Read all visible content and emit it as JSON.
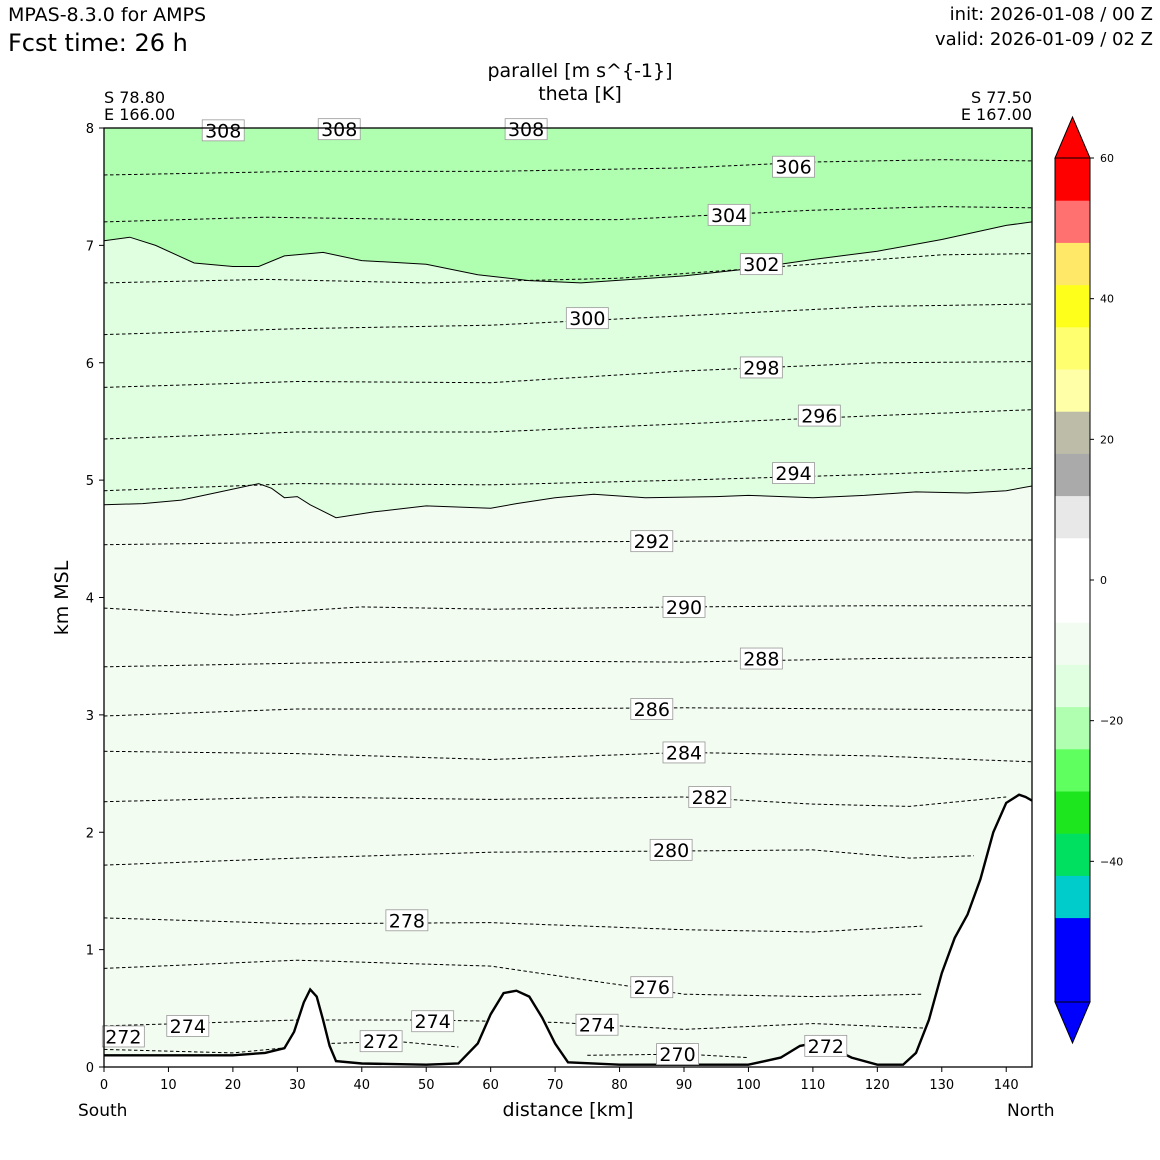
{
  "header": {
    "model": "MPAS-8.3.0 for AMPS",
    "fcst_label": "Fcst time:   26 h",
    "init": "init: 2026-01-08 / 00 Z",
    "valid": "valid: 2026-01-09 / 02 Z"
  },
  "endpoints": {
    "left_lat": "S 78.80",
    "left_lon": "E 166.00",
    "right_lat": "S 77.50",
    "right_lon": "E 167.00",
    "left_dir": "South",
    "right_dir": "North"
  },
  "chart_data": {
    "type": "contour",
    "title": "parallel [m s^{-1}]",
    "subtitle": "theta [K]",
    "xlabel": "distance [km]",
    "ylabel": "km MSL",
    "xlim": [
      0,
      144
    ],
    "ylim": [
      0,
      8
    ],
    "x_ticks": [
      0,
      10,
      20,
      30,
      40,
      50,
      60,
      70,
      80,
      90,
      100,
      110,
      120,
      130,
      140
    ],
    "y_ticks": [
      0,
      1,
      2,
      3,
      4,
      5,
      6,
      7,
      8
    ],
    "fill_regions": [
      {
        "range": "-15 to -10",
        "color": "#b0ffb0",
        "top_km": 8,
        "boundary_km": [
          [
            0,
            7.04
          ],
          [
            4,
            7.07
          ],
          [
            8,
            7.0
          ],
          [
            14,
            6.85
          ],
          [
            20,
            6.82
          ],
          [
            24,
            6.82
          ],
          [
            28,
            6.91
          ],
          [
            34,
            6.94
          ],
          [
            40,
            6.87
          ],
          [
            50,
            6.84
          ],
          [
            58,
            6.75
          ],
          [
            66,
            6.7
          ],
          [
            74,
            6.68
          ],
          [
            90,
            6.74
          ],
          [
            100,
            6.8
          ],
          [
            110,
            6.88
          ],
          [
            120,
            6.95
          ],
          [
            130,
            7.05
          ],
          [
            140,
            7.17
          ],
          [
            144,
            7.2
          ]
        ]
      },
      {
        "range": "-10 to -5",
        "color": "#e0ffe0",
        "boundary_km": [
          [
            0,
            4.79
          ],
          [
            6,
            4.8
          ],
          [
            12,
            4.83
          ],
          [
            18,
            4.9
          ],
          [
            24,
            4.97
          ],
          [
            26,
            4.93
          ],
          [
            28,
            4.85
          ],
          [
            30,
            4.86
          ],
          [
            32,
            4.79
          ],
          [
            36,
            4.68
          ],
          [
            42,
            4.73
          ],
          [
            50,
            4.78
          ],
          [
            60,
            4.76
          ],
          [
            64,
            4.8
          ],
          [
            70,
            4.85
          ],
          [
            76,
            4.88
          ],
          [
            84,
            4.85
          ],
          [
            95,
            4.86
          ],
          [
            100,
            4.87
          ],
          [
            110,
            4.85
          ],
          [
            118,
            4.87
          ],
          [
            126,
            4.9
          ],
          [
            134,
            4.89
          ],
          [
            140,
            4.91
          ],
          [
            144,
            4.95
          ]
        ]
      },
      {
        "range": "-5 to 0",
        "color": "#f2fcf0"
      }
    ],
    "theta_contours": [
      {
        "value": 306,
        "label": "306",
        "pts": [
          [
            0,
            7.6
          ],
          [
            30,
            7.63
          ],
          [
            60,
            7.63
          ],
          [
            90,
            7.66
          ],
          [
            110,
            7.71
          ],
          [
            130,
            7.73
          ],
          [
            144,
            7.72
          ]
        ],
        "label_km": [
          107,
          7.67
        ]
      },
      {
        "value": 304,
        "label": "304",
        "pts": [
          [
            0,
            7.2
          ],
          [
            25,
            7.24
          ],
          [
            50,
            7.22
          ],
          [
            80,
            7.22
          ],
          [
            110,
            7.3
          ],
          [
            130,
            7.33
          ],
          [
            144,
            7.32
          ]
        ],
        "label_km": [
          97,
          7.26
        ]
      },
      {
        "value": 302,
        "label": "302",
        "pts": [
          [
            0,
            6.68
          ],
          [
            25,
            6.71
          ],
          [
            50,
            6.68
          ],
          [
            80,
            6.72
          ],
          [
            110,
            6.84
          ],
          [
            130,
            6.92
          ],
          [
            144,
            6.93
          ]
        ],
        "label_km": [
          102,
          6.84
        ]
      },
      {
        "value": 300,
        "label": "300",
        "pts": [
          [
            0,
            6.24
          ],
          [
            30,
            6.29
          ],
          [
            60,
            6.32
          ],
          [
            90,
            6.4
          ],
          [
            120,
            6.48
          ],
          [
            144,
            6.5
          ]
        ],
        "label_km": [
          75,
          6.38
        ]
      },
      {
        "value": 298,
        "label": "298",
        "pts": [
          [
            0,
            5.79
          ],
          [
            30,
            5.84
          ],
          [
            60,
            5.83
          ],
          [
            90,
            5.93
          ],
          [
            120,
            6.0
          ],
          [
            144,
            6.01
          ]
        ],
        "label_km": [
          102,
          5.96
        ]
      },
      {
        "value": 296,
        "label": "296",
        "pts": [
          [
            0,
            5.35
          ],
          [
            30,
            5.41
          ],
          [
            60,
            5.41
          ],
          [
            90,
            5.48
          ],
          [
            120,
            5.55
          ],
          [
            144,
            5.6
          ]
        ],
        "label_km": [
          111,
          5.55
        ]
      },
      {
        "value": 294,
        "label": "294",
        "pts": [
          [
            0,
            4.91
          ],
          [
            30,
            4.97
          ],
          [
            60,
            4.96
          ],
          [
            90,
            5.0
          ],
          [
            120,
            5.05
          ],
          [
            144,
            5.1
          ]
        ],
        "label_km": [
          107,
          5.06
        ]
      },
      {
        "value": 292,
        "label": "292",
        "pts": [
          [
            0,
            4.45
          ],
          [
            30,
            4.47
          ],
          [
            60,
            4.47
          ],
          [
            90,
            4.48
          ],
          [
            120,
            4.49
          ],
          [
            144,
            4.49
          ]
        ],
        "label_km": [
          85,
          4.48
        ]
      },
      {
        "value": 290,
        "label": "290",
        "pts": [
          [
            0,
            3.91
          ],
          [
            20,
            3.85
          ],
          [
            40,
            3.92
          ],
          [
            60,
            3.9
          ],
          [
            90,
            3.92
          ],
          [
            120,
            3.93
          ],
          [
            144,
            3.93
          ]
        ],
        "label_km": [
          90,
          3.92
        ]
      },
      {
        "value": 288,
        "label": "288",
        "pts": [
          [
            0,
            3.41
          ],
          [
            30,
            3.44
          ],
          [
            60,
            3.46
          ],
          [
            90,
            3.45
          ],
          [
            120,
            3.48
          ],
          [
            144,
            3.49
          ]
        ],
        "label_km": [
          102,
          3.48
        ]
      },
      {
        "value": 286,
        "label": "286",
        "pts": [
          [
            0,
            2.99
          ],
          [
            30,
            3.05
          ],
          [
            60,
            3.05
          ],
          [
            90,
            3.06
          ],
          [
            120,
            3.05
          ],
          [
            144,
            3.04
          ]
        ],
        "label_km": [
          85,
          3.05
        ]
      },
      {
        "value": 284,
        "label": "284",
        "pts": [
          [
            0,
            2.69
          ],
          [
            30,
            2.67
          ],
          [
            60,
            2.62
          ],
          [
            90,
            2.68
          ],
          [
            120,
            2.65
          ],
          [
            144,
            2.6
          ]
        ],
        "label_km": [
          90,
          2.68
        ]
      },
      {
        "value": 282,
        "label": "282",
        "pts": [
          [
            0,
            2.26
          ],
          [
            30,
            2.3
          ],
          [
            60,
            2.28
          ],
          [
            90,
            2.3
          ],
          [
            110,
            2.24
          ],
          [
            125,
            2.22
          ],
          [
            140,
            2.3
          ]
        ],
        "label_km": [
          94,
          2.3
        ]
      },
      {
        "value": 280,
        "label": "280",
        "pts": [
          [
            0,
            1.72
          ],
          [
            30,
            1.78
          ],
          [
            60,
            1.83
          ],
          [
            90,
            1.84
          ],
          [
            110,
            1.85
          ],
          [
            125,
            1.78
          ],
          [
            135,
            1.8
          ]
        ],
        "label_km": [
          88,
          1.85
        ]
      },
      {
        "value": 278,
        "label": "278",
        "pts": [
          [
            0,
            1.27
          ],
          [
            30,
            1.22
          ],
          [
            60,
            1.23
          ],
          [
            90,
            1.17
          ],
          [
            110,
            1.15
          ],
          [
            127,
            1.2
          ]
        ],
        "label_km": [
          47,
          1.25
        ]
      },
      {
        "value": 276,
        "label": "276",
        "pts": [
          [
            0,
            0.84
          ],
          [
            30,
            0.91
          ],
          [
            60,
            0.86
          ],
          [
            90,
            0.62
          ],
          [
            110,
            0.6
          ],
          [
            127,
            0.62
          ]
        ],
        "label_km": [
          85,
          0.68
        ]
      },
      {
        "value": 274,
        "label": "274",
        "pts": [
          [
            0,
            0.35
          ],
          [
            30,
            0.4
          ],
          [
            50,
            0.4
          ],
          [
            70,
            0.38
          ],
          [
            90,
            0.32
          ],
          [
            110,
            0.37
          ],
          [
            128,
            0.33
          ]
        ],
        "label_km": [
          51,
          0.39
        ]
      },
      {
        "value": 272,
        "label": "272",
        "pts": [
          [
            0,
            0.15
          ],
          [
            20,
            0.12
          ],
          [
            35,
            0.2
          ],
          [
            45,
            0.22
          ],
          [
            55,
            0.17
          ]
        ],
        "label_km": [
          43,
          0.22
        ]
      },
      {
        "value": 270,
        "label": "270",
        "pts": [
          [
            75,
            0.1
          ],
          [
            90,
            0.11
          ],
          [
            100,
            0.08
          ]
        ],
        "label_km": [
          89,
          0.11
        ]
      }
    ],
    "extra_labels": [
      {
        "label": "308",
        "x_km": 18.5,
        "y_km": 7.98
      },
      {
        "label": "308",
        "x_km": 36.5,
        "y_km": 7.99
      },
      {
        "label": "308",
        "x_km": 65.5,
        "y_km": 7.99
      },
      {
        "label": "274",
        "x_km": 13,
        "y_km": 0.35
      },
      {
        "label": "272",
        "x_km": 3,
        "y_km": 0.26
      },
      {
        "label": "274",
        "x_km": 76.5,
        "y_km": 0.36
      },
      {
        "label": "272",
        "x_km": 112,
        "y_km": 0.18
      }
    ],
    "terrain_km": [
      [
        0,
        0.1
      ],
      [
        10,
        0.1
      ],
      [
        20,
        0.1
      ],
      [
        25,
        0.12
      ],
      [
        28,
        0.16
      ],
      [
        29.5,
        0.3
      ],
      [
        31,
        0.55
      ],
      [
        32,
        0.66
      ],
      [
        33,
        0.6
      ],
      [
        34,
        0.4
      ],
      [
        35,
        0.18
      ],
      [
        36,
        0.05
      ],
      [
        40,
        0.03
      ],
      [
        50,
        0.02
      ],
      [
        55,
        0.03
      ],
      [
        58,
        0.2
      ],
      [
        60,
        0.45
      ],
      [
        62,
        0.63
      ],
      [
        64,
        0.65
      ],
      [
        66,
        0.6
      ],
      [
        68,
        0.42
      ],
      [
        70,
        0.2
      ],
      [
        72,
        0.04
      ],
      [
        80,
        0.02
      ],
      [
        100,
        0.02
      ],
      [
        105,
        0.08
      ],
      [
        108,
        0.18
      ],
      [
        110,
        0.2
      ],
      [
        113,
        0.16
      ],
      [
        116,
        0.08
      ],
      [
        120,
        0.02
      ],
      [
        124,
        0.02
      ],
      [
        126,
        0.12
      ],
      [
        128,
        0.4
      ],
      [
        130,
        0.8
      ],
      [
        132,
        1.1
      ],
      [
        134,
        1.3
      ],
      [
        136,
        1.6
      ],
      [
        138,
        2.0
      ],
      [
        140,
        2.25
      ],
      [
        142,
        2.32
      ],
      [
        143,
        2.3
      ],
      [
        144,
        2.27
      ]
    ],
    "colorbar": {
      "ticks": [
        60,
        40,
        20,
        0,
        -20,
        -40
      ],
      "levels": [
        -55,
        -50,
        -45,
        -40,
        -35,
        -30,
        -25,
        -20,
        -15,
        -10,
        -5,
        0,
        5,
        10,
        15,
        20,
        25,
        30,
        35,
        40,
        45,
        50,
        55,
        60
      ],
      "colors": [
        "#0000ff",
        "#0000ff",
        "#00cccc",
        "#00e060",
        "#1ee61e",
        "#60ff60",
        "#b0ffb0",
        "#e0ffe0",
        "#f2fcf0",
        "#ffffff",
        "#ffffff",
        "#e8e8e8",
        "#aaaaaa",
        "#bcbca8",
        "#ffffa8",
        "#ffff70",
        "#ffff1c",
        "#ffe868",
        "#ff7070",
        "#ff0000"
      ],
      "extend_low_color": "#0000ff",
      "extend_high_color": "#ff0000"
    }
  }
}
